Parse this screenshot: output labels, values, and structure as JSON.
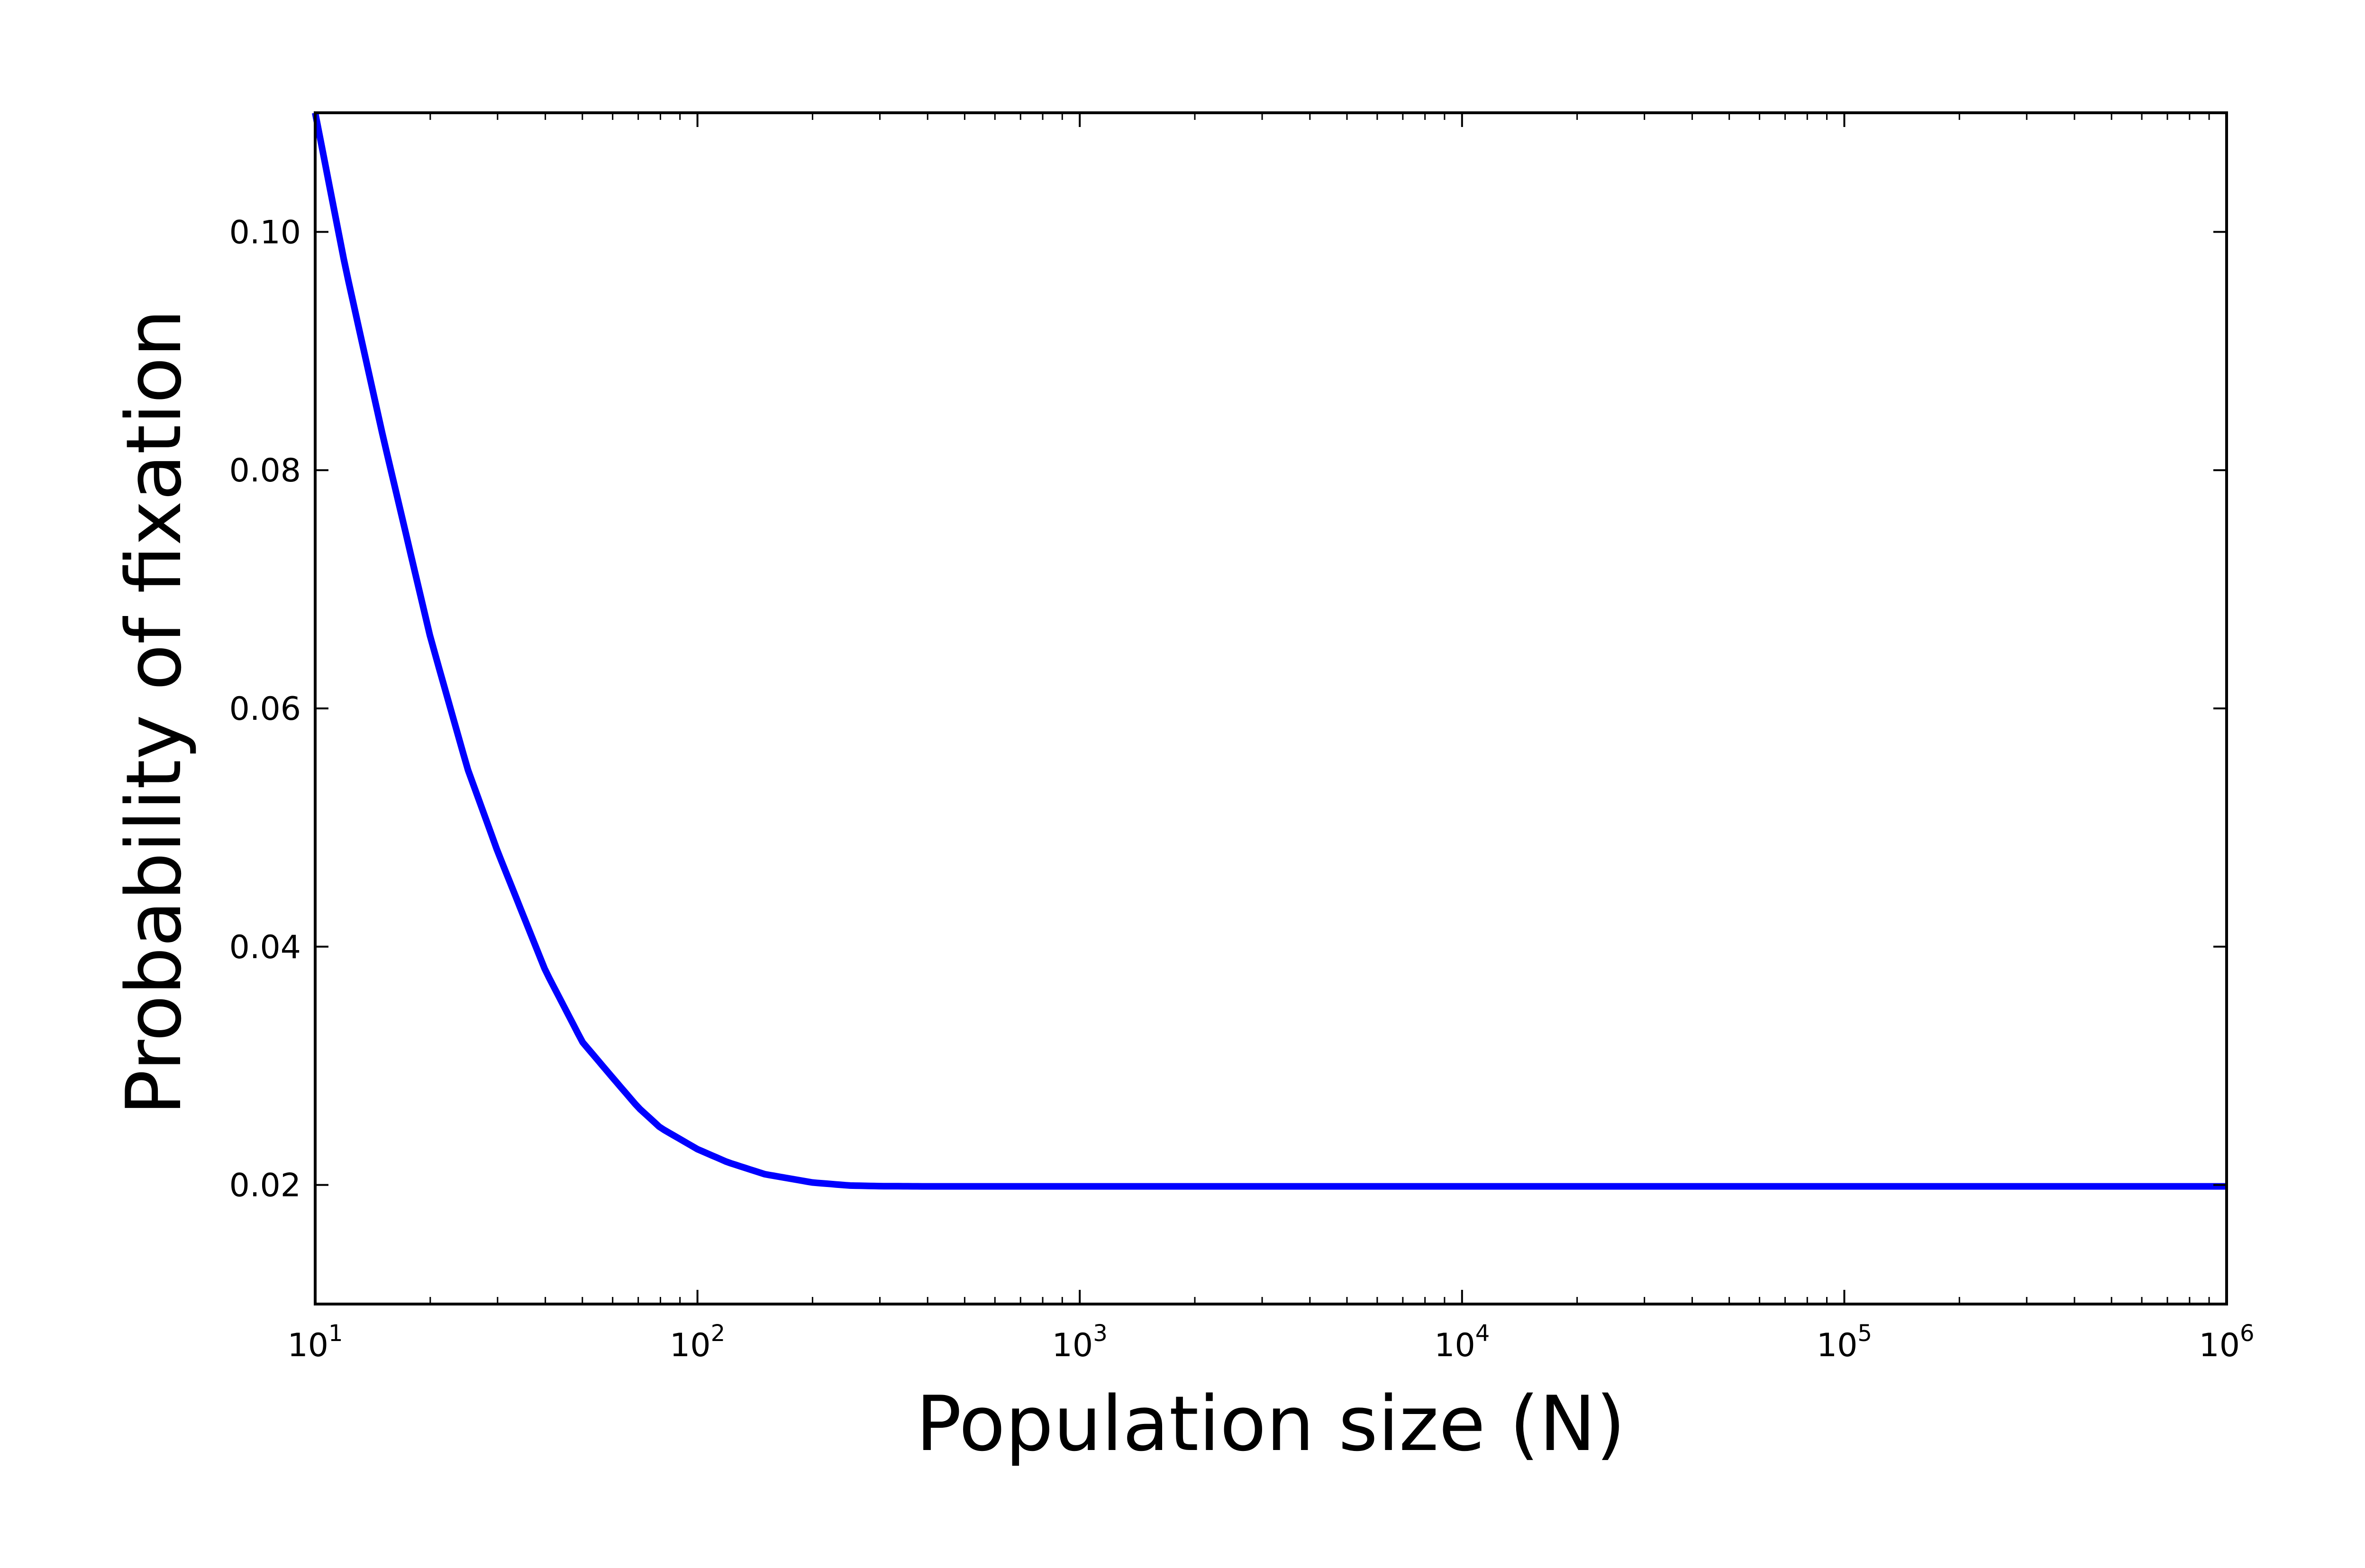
{
  "chart_data": {
    "type": "line",
    "title": "",
    "xlabel": "Population size (N)",
    "ylabel": "Probability of fixation",
    "xscale": "log",
    "xlim": [
      10,
      1000000
    ],
    "ylim": [
      0.01,
      0.11
    ],
    "grid": false,
    "legend": "none",
    "x_ticks": [
      {
        "value": 10,
        "base": "10",
        "exp": "1"
      },
      {
        "value": 100,
        "base": "10",
        "exp": "2"
      },
      {
        "value": 1000,
        "base": "10",
        "exp": "3"
      },
      {
        "value": 10000,
        "base": "10",
        "exp": "4"
      },
      {
        "value": 100000,
        "base": "10",
        "exp": "5"
      },
      {
        "value": 1000000,
        "base": "10",
        "exp": "6"
      }
    ],
    "y_ticks": [
      {
        "value": 0.02,
        "label": "0.02"
      },
      {
        "value": 0.04,
        "label": "0.04"
      },
      {
        "value": 0.06,
        "label": "0.06"
      },
      {
        "value": 0.08,
        "label": "0.08"
      },
      {
        "value": 0.1,
        "label": "0.10"
      }
    ],
    "series": [
      {
        "color": "#0000ff",
        "x": [
          10,
          12,
          15,
          20,
          25,
          30,
          40,
          50,
          60,
          70,
          80,
          100,
          120,
          150,
          200,
          250,
          300,
          400,
          500,
          1000,
          10000,
          100000,
          1000000
        ],
        "y": [
          0.11,
          0.097,
          0.083,
          0.066,
          0.055,
          0.048,
          0.038,
          0.032,
          0.029,
          0.0265,
          0.0248,
          0.023,
          0.0219,
          0.0209,
          0.0202,
          0.01995,
          0.0199,
          0.01988,
          0.01988,
          0.01988,
          0.01988,
          0.01988,
          0.01988
        ]
      }
    ]
  }
}
